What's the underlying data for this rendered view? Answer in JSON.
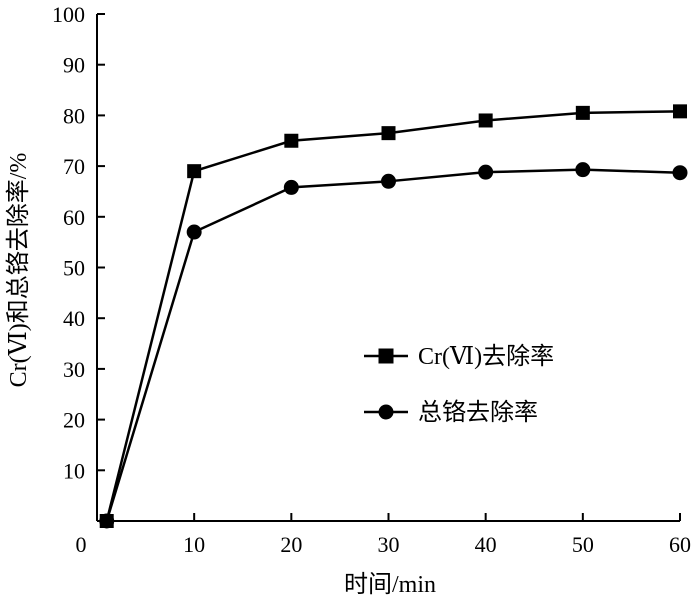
{
  "chart_data": {
    "type": "line",
    "xlabel": "时间/min",
    "ylabel": "Cr(Ⅵ)和总铬去除率/%",
    "xlim": [
      0,
      60
    ],
    "ylim": [
      0,
      100
    ],
    "x_ticks": [
      0,
      10,
      20,
      30,
      40,
      50,
      60
    ],
    "y_ticks": [
      10,
      20,
      30,
      40,
      50,
      60,
      70,
      80,
      90,
      100
    ],
    "origin_label": "0",
    "legend_position": "center-right",
    "grid": false,
    "x": [
      1,
      10,
      20,
      30,
      40,
      50,
      60
    ],
    "series": [
      {
        "name": "Cr(Ⅵ)去除率",
        "marker": "square",
        "color": "#000000",
        "values": [
          0,
          69,
          75,
          76.5,
          79,
          80.5,
          80.8
        ]
      },
      {
        "name": "总铬去除率",
        "marker": "circle",
        "color": "#000000",
        "values": [
          0,
          57,
          65.8,
          67,
          68.8,
          69.3,
          68.7
        ]
      }
    ]
  }
}
